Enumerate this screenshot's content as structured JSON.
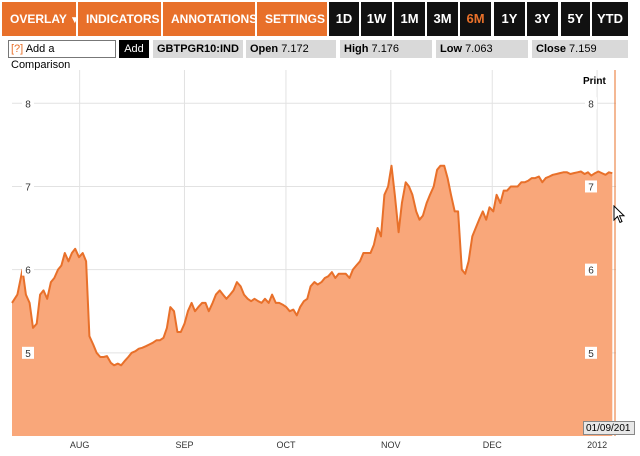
{
  "toolbar": {
    "menus": [
      {
        "label": "OVERLAY"
      },
      {
        "label": "INDICATORS"
      },
      {
        "label": "ANNOTATIONS"
      },
      {
        "label": "SETTINGS"
      }
    ],
    "ranges": [
      "1D",
      "1W",
      "1M",
      "3M",
      "6M",
      "1Y",
      "3Y",
      "5Y",
      "YTD"
    ],
    "active_range": "6M",
    "caret": "▼"
  },
  "infobar": {
    "help_label": "[?]",
    "comparison_label": "Add a Comparison",
    "add_label": "Add",
    "ticker": "GBTPGR10:IND",
    "open_label": "Open",
    "open_value": "7.172",
    "high_label": "High",
    "high_value": "7.176",
    "low_label": "Low",
    "low_value": "7.063",
    "close_label": "Close",
    "close_value": "7.159"
  },
  "print_label": "Print",
  "date_label": "01/09/201",
  "colors": {
    "accent": "#e8702a",
    "area_fill": "#f9a77a",
    "line": "#e8702a"
  },
  "chart_data": {
    "type": "area",
    "ylim": [
      4.0,
      8.4
    ],
    "yticks": [
      "5",
      "6",
      "7",
      "8"
    ],
    "xticks": [
      {
        "label": "AUG",
        "x": 20
      },
      {
        "label": "SEP",
        "x": 51
      },
      {
        "label": "OCT",
        "x": 81
      },
      {
        "label": "NOV",
        "x": 112
      },
      {
        "label": "DEC",
        "x": 142
      },
      {
        "label": "2012",
        "x": 173
      }
    ],
    "xmax": 178,
    "series": [
      {
        "points": [
          [
            0,
            5.6
          ],
          [
            1.6,
            5.7
          ],
          [
            3.1,
            6.0
          ],
          [
            4.1,
            5.7
          ],
          [
            5.2,
            5.6
          ],
          [
            6.2,
            5.3
          ],
          [
            7.3,
            5.35
          ],
          [
            8.3,
            5.7
          ],
          [
            9.3,
            5.75
          ],
          [
            10.4,
            5.65
          ],
          [
            11.5,
            5.85
          ],
          [
            12.5,
            5.9
          ],
          [
            13.6,
            6.0
          ],
          [
            14.6,
            6.05
          ],
          [
            15.6,
            6.2
          ],
          [
            16.7,
            6.1
          ],
          [
            17.7,
            6.2
          ],
          [
            18.7,
            6.25
          ],
          [
            19.8,
            6.15
          ],
          [
            20.9,
            6.2
          ],
          [
            21.9,
            6.1
          ],
          [
            22.9,
            5.2
          ],
          [
            24,
            5.1
          ],
          [
            25,
            5.0
          ],
          [
            26.1,
            4.95
          ],
          [
            27.1,
            4.95
          ],
          [
            28.1,
            4.96
          ],
          [
            29.2,
            4.88
          ],
          [
            30.2,
            4.85
          ],
          [
            31.3,
            4.87
          ],
          [
            32.3,
            4.85
          ],
          [
            33.3,
            4.9
          ],
          [
            34.4,
            4.95
          ],
          [
            35.4,
            5.0
          ],
          [
            36.5,
            5.02
          ],
          [
            37.5,
            5.05
          ],
          [
            38.5,
            5.06
          ],
          [
            39.6,
            5.08
          ],
          [
            40.6,
            5.1
          ],
          [
            41.6,
            5.12
          ],
          [
            42.7,
            5.15
          ],
          [
            43.7,
            5.15
          ],
          [
            44.8,
            5.18
          ],
          [
            45.8,
            5.3
          ],
          [
            46.8,
            5.55
          ],
          [
            47.9,
            5.5
          ],
          [
            48.9,
            5.25
          ],
          [
            49.9,
            5.25
          ],
          [
            51,
            5.35
          ],
          [
            52,
            5.5
          ],
          [
            53.1,
            5.6
          ],
          [
            54.1,
            5.5
          ],
          [
            55.1,
            5.55
          ],
          [
            56.2,
            5.6
          ],
          [
            57.2,
            5.6
          ],
          [
            58.2,
            5.5
          ],
          [
            59.3,
            5.6
          ],
          [
            60.3,
            5.7
          ],
          [
            61.4,
            5.75
          ],
          [
            62.4,
            5.7
          ],
          [
            63.4,
            5.65
          ],
          [
            64.5,
            5.7
          ],
          [
            65.5,
            5.75
          ],
          [
            66.5,
            5.85
          ],
          [
            67.6,
            5.8
          ],
          [
            68.6,
            5.7
          ],
          [
            69.7,
            5.65
          ],
          [
            70.7,
            5.62
          ],
          [
            71.7,
            5.65
          ],
          [
            72.8,
            5.62
          ],
          [
            73.8,
            5.6
          ],
          [
            74.8,
            5.65
          ],
          [
            75.9,
            5.6
          ],
          [
            76.9,
            5.7
          ],
          [
            78,
            5.6
          ],
          [
            79,
            5.6
          ],
          [
            80,
            5.58
          ],
          [
            81.1,
            5.55
          ],
          [
            82.1,
            5.5
          ],
          [
            83.2,
            5.52
          ],
          [
            84.2,
            5.45
          ],
          [
            85.2,
            5.55
          ],
          [
            86.3,
            5.62
          ],
          [
            87.3,
            5.65
          ],
          [
            88.3,
            5.8
          ],
          [
            89.4,
            5.85
          ],
          [
            90.4,
            5.82
          ],
          [
            91.5,
            5.85
          ],
          [
            92.5,
            5.9
          ],
          [
            93.5,
            5.92
          ],
          [
            94.6,
            5.97
          ],
          [
            95.6,
            5.9
          ],
          [
            96.6,
            5.95
          ],
          [
            97.7,
            5.95
          ],
          [
            98.7,
            5.95
          ],
          [
            99.8,
            5.9
          ],
          [
            100.8,
            6.0
          ],
          [
            101.8,
            6.05
          ],
          [
            102.9,
            6.1
          ],
          [
            103.9,
            6.2
          ],
          [
            105,
            6.2
          ],
          [
            106,
            6.2
          ],
          [
            107,
            6.3
          ],
          [
            108.1,
            6.5
          ],
          [
            109.1,
            6.4
          ],
          [
            110.1,
            6.9
          ],
          [
            111.2,
            7.0
          ],
          [
            112.2,
            7.25
          ],
          [
            113.2,
            6.9
          ],
          [
            114.3,
            6.45
          ],
          [
            115.3,
            6.8
          ],
          [
            116.4,
            7.05
          ],
          [
            117.4,
            7.0
          ],
          [
            118.4,
            6.9
          ],
          [
            119.5,
            6.7
          ],
          [
            120.5,
            6.6
          ],
          [
            121.5,
            6.65
          ],
          [
            122.6,
            6.8
          ],
          [
            123.6,
            6.9
          ],
          [
            124.7,
            7.0
          ],
          [
            125.7,
            7.2
          ],
          [
            126.7,
            7.25
          ],
          [
            127.8,
            7.25
          ],
          [
            128.8,
            7.1
          ],
          [
            129.8,
            6.9
          ],
          [
            130.9,
            6.7
          ],
          [
            131.9,
            6.7
          ],
          [
            133,
            6.0
          ],
          [
            134,
            5.95
          ],
          [
            135,
            6.1
          ],
          [
            136.1,
            6.4
          ],
          [
            137.1,
            6.5
          ],
          [
            138.1,
            6.6
          ],
          [
            139.2,
            6.7
          ],
          [
            140.2,
            6.6
          ],
          [
            141.2,
            6.75
          ],
          [
            142.3,
            6.7
          ],
          [
            143.3,
            6.9
          ],
          [
            144.4,
            6.8
          ],
          [
            145.4,
            6.95
          ],
          [
            146.4,
            6.95
          ],
          [
            147.5,
            7.0
          ],
          [
            148.5,
            7.0
          ],
          [
            149.5,
            7.0
          ],
          [
            150.6,
            7.05
          ],
          [
            151.6,
            7.05
          ],
          [
            152.7,
            7.07
          ],
          [
            153.7,
            7.1
          ],
          [
            154.7,
            7.1
          ],
          [
            155.8,
            7.12
          ],
          [
            156.8,
            7.05
          ],
          [
            157.8,
            7.1
          ],
          [
            158.9,
            7.12
          ],
          [
            159.9,
            7.14
          ],
          [
            161,
            7.15
          ],
          [
            162,
            7.16
          ],
          [
            163,
            7.17
          ],
          [
            164.1,
            7.17
          ],
          [
            165.1,
            7.15
          ],
          [
            166.1,
            7.16
          ],
          [
            167.2,
            7.17
          ],
          [
            168.2,
            7.18
          ],
          [
            169.3,
            7.15
          ],
          [
            170.3,
            7.17
          ],
          [
            171.3,
            7.13
          ],
          [
            172.4,
            7.16
          ],
          [
            173.4,
            7.18
          ],
          [
            174.4,
            7.16
          ],
          [
            175.5,
            7.14
          ],
          [
            176.5,
            7.17
          ],
          [
            177.5,
            7.159
          ]
        ]
      }
    ]
  }
}
